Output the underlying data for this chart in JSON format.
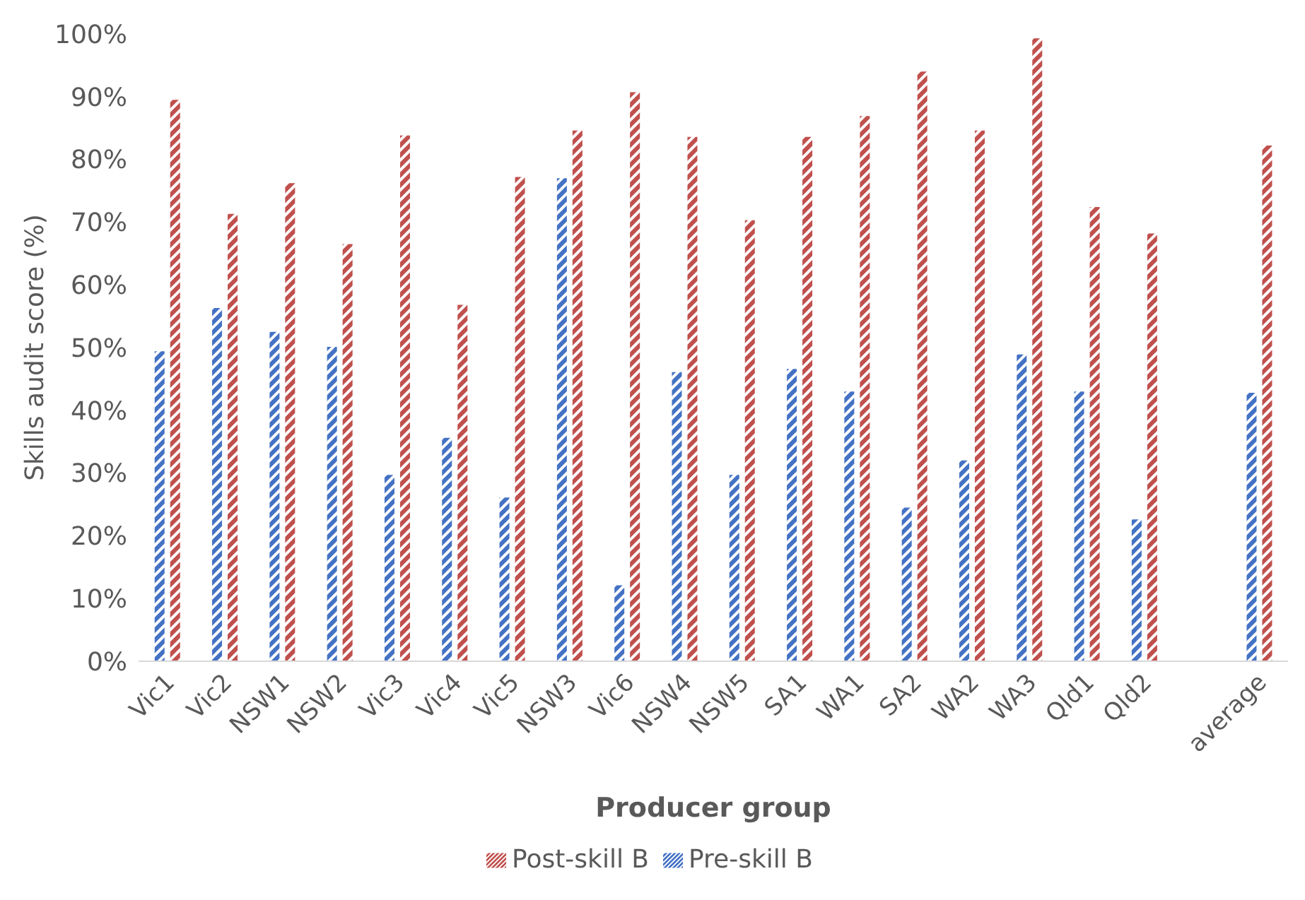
{
  "chart_data": {
    "type": "bar",
    "xlabel": "Producer group",
    "ylabel": "Skills audit score (%)",
    "categories": [
      "Vic1",
      "Vic2",
      "NSW1",
      "NSW2",
      "Vic3",
      "Vic4",
      "Vic5",
      "NSW3",
      "Vic6",
      "NSW4",
      "NSW5",
      "SA1",
      "WA1",
      "SA2",
      "WA2",
      "WA3",
      "Qld1",
      "Qld2",
      null,
      "average"
    ],
    "series": [
      {
        "name": "Pre-skill B",
        "color": "#4472c4",
        "values": [
          49.4,
          56.3,
          52.5,
          50.1,
          29.7,
          35.6,
          26.1,
          77,
          12.1,
          46.1,
          29.7,
          46.6,
          43,
          24.5,
          32,
          48.9,
          43,
          22.6,
          null,
          42.8
        ]
      },
      {
        "name": "Post-skill B",
        "color": "#c0504d",
        "values": [
          89.5,
          71.3,
          76.2,
          66.5,
          83.8,
          56.8,
          77.2,
          84.6,
          90.7,
          83.6,
          70.3,
          83.6,
          86.9,
          94,
          84.6,
          99.3,
          72.4,
          68.2,
          null,
          82.2
        ]
      }
    ],
    "ylim": [
      0,
      100
    ],
    "yticks": [
      {
        "value": 0,
        "label": "0%"
      },
      {
        "value": 10,
        "label": "10%"
      },
      {
        "value": 20,
        "label": "20%"
      },
      {
        "value": 30,
        "label": "30%"
      },
      {
        "value": 40,
        "label": "40%"
      },
      {
        "value": 50,
        "label": "50%"
      },
      {
        "value": 60,
        "label": "60%"
      },
      {
        "value": 70,
        "label": "70%"
      },
      {
        "value": 80,
        "label": "80%"
      },
      {
        "value": 90,
        "label": "90%"
      },
      {
        "value": 100,
        "label": "100%"
      }
    ],
    "legend": "bottom"
  }
}
